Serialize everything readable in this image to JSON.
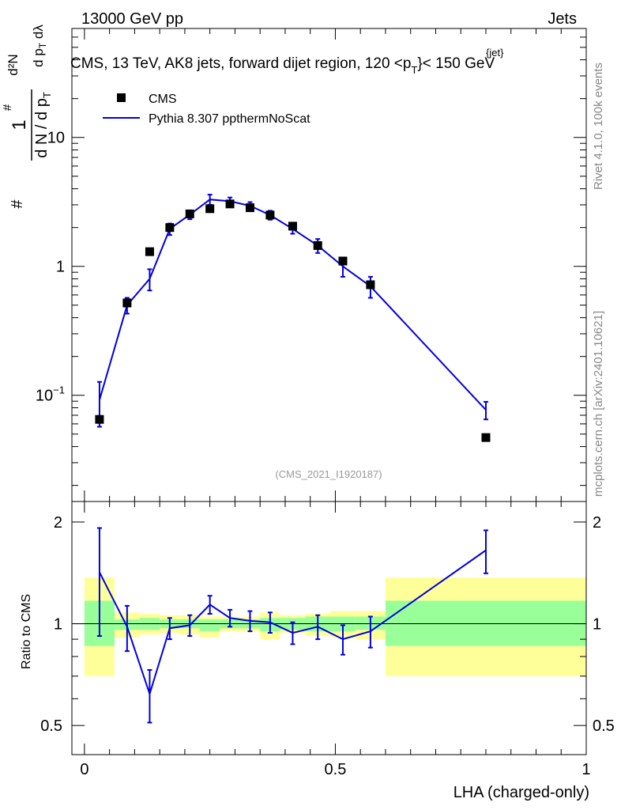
{
  "header": {
    "left": "13000 GeV pp",
    "right": "Jets"
  },
  "side_labels": {
    "rivet": "Rivet 4.1.0,  100k events",
    "mcplots": "mcplots.cern.ch [arXiv:2401.10621]"
  },
  "colors": {
    "data": "#000000",
    "mc": "#0000e0",
    "band_inner": "#99ff99",
    "band_outer": "#ffff99"
  },
  "chart_data": [
    {
      "type": "scatter",
      "panel": "main",
      "title": "CMS, 13 TeV, AK8 jets, forward dijet region, 120 <p",
      "title_sup": "{jet}",
      "title_sub": "T",
      "title_end": "}< 150 GeV",
      "ylabel": "# 1/(dN/dp_T) d²N/(dp_T dλ)",
      "ylog": true,
      "ylim": [
        0.015,
        70
      ],
      "xlim": [
        -0.025,
        1.0
      ],
      "yticks": [
        {
          "value": 10,
          "label": "10"
        },
        {
          "value": 1,
          "label": "1"
        },
        {
          "value": 0.1,
          "label": "10",
          "sup": "−1"
        }
      ],
      "watermark": "(CMS_2021_I1920187)",
      "legend": [
        {
          "name": "CMS",
          "marker": "square"
        },
        {
          "name": "Pythia 8.307 ppthermNoScat",
          "marker": "line"
        }
      ],
      "series": [
        {
          "name": "CMS",
          "x": [
            0.03,
            0.085,
            0.13,
            0.17,
            0.21,
            0.25,
            0.29,
            0.33,
            0.37,
            0.415,
            0.465,
            0.515,
            0.57,
            0.8
          ],
          "y": [
            0.065,
            0.52,
            1.3,
            2.0,
            2.55,
            2.8,
            3.05,
            2.85,
            2.5,
            2.05,
            1.45,
            1.1,
            0.72,
            0.047
          ]
        },
        {
          "name": "Pythia 8.307 ppthermNoScat",
          "x": [
            0.03,
            0.085,
            0.13,
            0.17,
            0.21,
            0.25,
            0.29,
            0.33,
            0.37,
            0.415,
            0.465,
            0.515,
            0.57,
            0.8
          ],
          "y": [
            0.092,
            0.5,
            0.8,
            1.95,
            2.52,
            3.3,
            3.2,
            2.95,
            2.5,
            1.95,
            1.45,
            1.0,
            0.7,
            0.077
          ],
          "yerr_low": [
            0.035,
            0.07,
            0.15,
            0.2,
            0.2,
            0.3,
            0.22,
            0.2,
            0.2,
            0.16,
            0.18,
            0.17,
            0.13,
            0.012
          ],
          "yerr_high": [
            0.035,
            0.07,
            0.15,
            0.2,
            0.2,
            0.3,
            0.22,
            0.2,
            0.2,
            0.16,
            0.18,
            0.17,
            0.13,
            0.012
          ]
        }
      ]
    },
    {
      "type": "line",
      "panel": "ratio",
      "ylabel": "Ratio to CMS",
      "xlabel": "LHA (charged-only)",
      "ylog": true,
      "ylim": [
        0.41,
        2.3
      ],
      "xlim": [
        -0.025,
        1.0
      ],
      "yticks": [
        {
          "value": 2,
          "label": "2"
        },
        {
          "value": 1,
          "label": "1"
        },
        {
          "value": 0.5,
          "label": "0.5"
        }
      ],
      "xticks": [
        {
          "value": 0,
          "label": "0"
        },
        {
          "value": 0.5,
          "label": "0.5"
        },
        {
          "value": 1,
          "label": "1"
        }
      ],
      "bands": [
        {
          "x0": 0.0,
          "x1": 0.06,
          "inner": [
            0.86,
            1.17
          ],
          "outer": [
            0.7,
            1.37
          ]
        },
        {
          "x0": 0.06,
          "x1": 0.11,
          "inner": [
            0.96,
            1.03
          ],
          "outer": [
            0.91,
            1.08
          ]
        },
        {
          "x0": 0.11,
          "x1": 0.15,
          "inner": [
            0.96,
            1.04
          ],
          "outer": [
            0.93,
            1.07
          ]
        },
        {
          "x0": 0.15,
          "x1": 0.19,
          "inner": [
            0.97,
            1.03
          ],
          "outer": [
            0.94,
            1.06
          ]
        },
        {
          "x0": 0.19,
          "x1": 0.23,
          "inner": [
            0.97,
            1.03
          ],
          "outer": [
            0.93,
            1.06
          ]
        },
        {
          "x0": 0.23,
          "x1": 0.27,
          "inner": [
            0.95,
            1.03
          ],
          "outer": [
            0.91,
            1.05
          ]
        },
        {
          "x0": 0.27,
          "x1": 0.31,
          "inner": [
            0.97,
            1.03
          ],
          "outer": [
            0.95,
            1.05
          ]
        },
        {
          "x0": 0.31,
          "x1": 0.35,
          "inner": [
            0.97,
            1.03
          ],
          "outer": [
            0.95,
            1.05
          ]
        },
        {
          "x0": 0.35,
          "x1": 0.39,
          "inner": [
            0.95,
            1.04
          ],
          "outer": [
            0.9,
            1.08
          ]
        },
        {
          "x0": 0.39,
          "x1": 0.44,
          "inner": [
            0.96,
            1.04
          ],
          "outer": [
            0.94,
            1.06
          ]
        },
        {
          "x0": 0.44,
          "x1": 0.49,
          "inner": [
            0.95,
            1.05
          ],
          "outer": [
            0.92,
            1.07
          ]
        },
        {
          "x0": 0.49,
          "x1": 0.54,
          "inner": [
            0.95,
            1.05
          ],
          "outer": [
            0.91,
            1.09
          ]
        },
        {
          "x0": 0.54,
          "x1": 0.6,
          "inner": [
            0.96,
            1.05
          ],
          "outer": [
            0.9,
            1.09
          ]
        },
        {
          "x0": 0.6,
          "x1": 1.0,
          "inner": [
            0.86,
            1.17
          ],
          "outer": [
            0.7,
            1.37
          ]
        }
      ],
      "series": [
        {
          "name": "Pythia 8.307 ppthermNoScat / CMS",
          "x": [
            0.03,
            0.085,
            0.13,
            0.17,
            0.21,
            0.25,
            0.29,
            0.33,
            0.37,
            0.415,
            0.465,
            0.515,
            0.57,
            0.8
          ],
          "y": [
            1.42,
            0.98,
            0.62,
            0.97,
            0.99,
            1.14,
            1.04,
            1.02,
            1.01,
            0.94,
            0.98,
            0.9,
            0.95,
            1.65
          ],
          "yerr_low": [
            0.5,
            0.15,
            0.11,
            0.07,
            0.07,
            0.07,
            0.06,
            0.07,
            0.07,
            0.07,
            0.08,
            0.09,
            0.1,
            0.24
          ],
          "yerr_high": [
            0.5,
            0.15,
            0.11,
            0.07,
            0.07,
            0.07,
            0.06,
            0.07,
            0.07,
            0.07,
            0.08,
            0.09,
            0.1,
            0.24
          ]
        }
      ]
    }
  ]
}
